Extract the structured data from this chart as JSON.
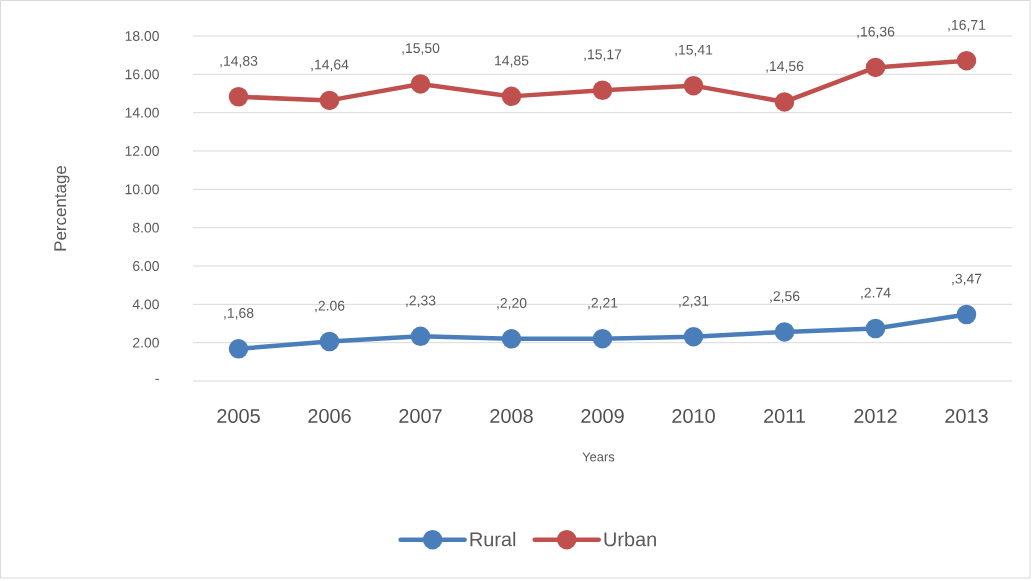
{
  "chart_data": {
    "type": "line",
    "xlabel": "Years",
    "ylabel": "Percentage",
    "categories": [
      "2005",
      "2006",
      "2007",
      "2008",
      "2009",
      "2010",
      "2011",
      "2012",
      "2013"
    ],
    "series": [
      {
        "name": "Rural",
        "color": "#4a7ebb",
        "values": [
          1.68,
          2.06,
          2.33,
          2.2,
          2.21,
          2.31,
          2.56,
          2.74,
          3.47
        ],
        "value_labels": [
          ",1,68",
          ",2.06",
          ",2,33",
          ",2,20",
          ",2,21",
          ",2,31",
          ",2,56",
          ",2.74",
          ",3,47"
        ]
      },
      {
        "name": "Urban",
        "color": "#c0504d",
        "values": [
          14.83,
          14.64,
          15.5,
          14.85,
          15.17,
          15.41,
          14.56,
          16.36,
          16.71
        ],
        "value_labels": [
          ",14,83",
          ",14,64",
          ",15,50",
          "14,85",
          ",15,17",
          ",15,41",
          ",14,56",
          ",16,36",
          ",16,71"
        ]
      }
    ],
    "ylim": [
      0,
      18
    ],
    "yticks": [
      {
        "value": 0,
        "label": "-"
      },
      {
        "value": 2,
        "label": "2.00"
      },
      {
        "value": 4,
        "label": "4.00"
      },
      {
        "value": 6,
        "label": "6.00"
      },
      {
        "value": 8,
        "label": "8.00"
      },
      {
        "value": 10,
        "label": "10.00"
      },
      {
        "value": 12,
        "label": "12.00"
      },
      {
        "value": 14,
        "label": "14.00"
      },
      {
        "value": 16,
        "label": "16.00"
      },
      {
        "value": 18,
        "label": "18.00"
      }
    ],
    "grid": "y",
    "legend": "bottom",
    "marker": "circle",
    "line_style": "solid"
  }
}
